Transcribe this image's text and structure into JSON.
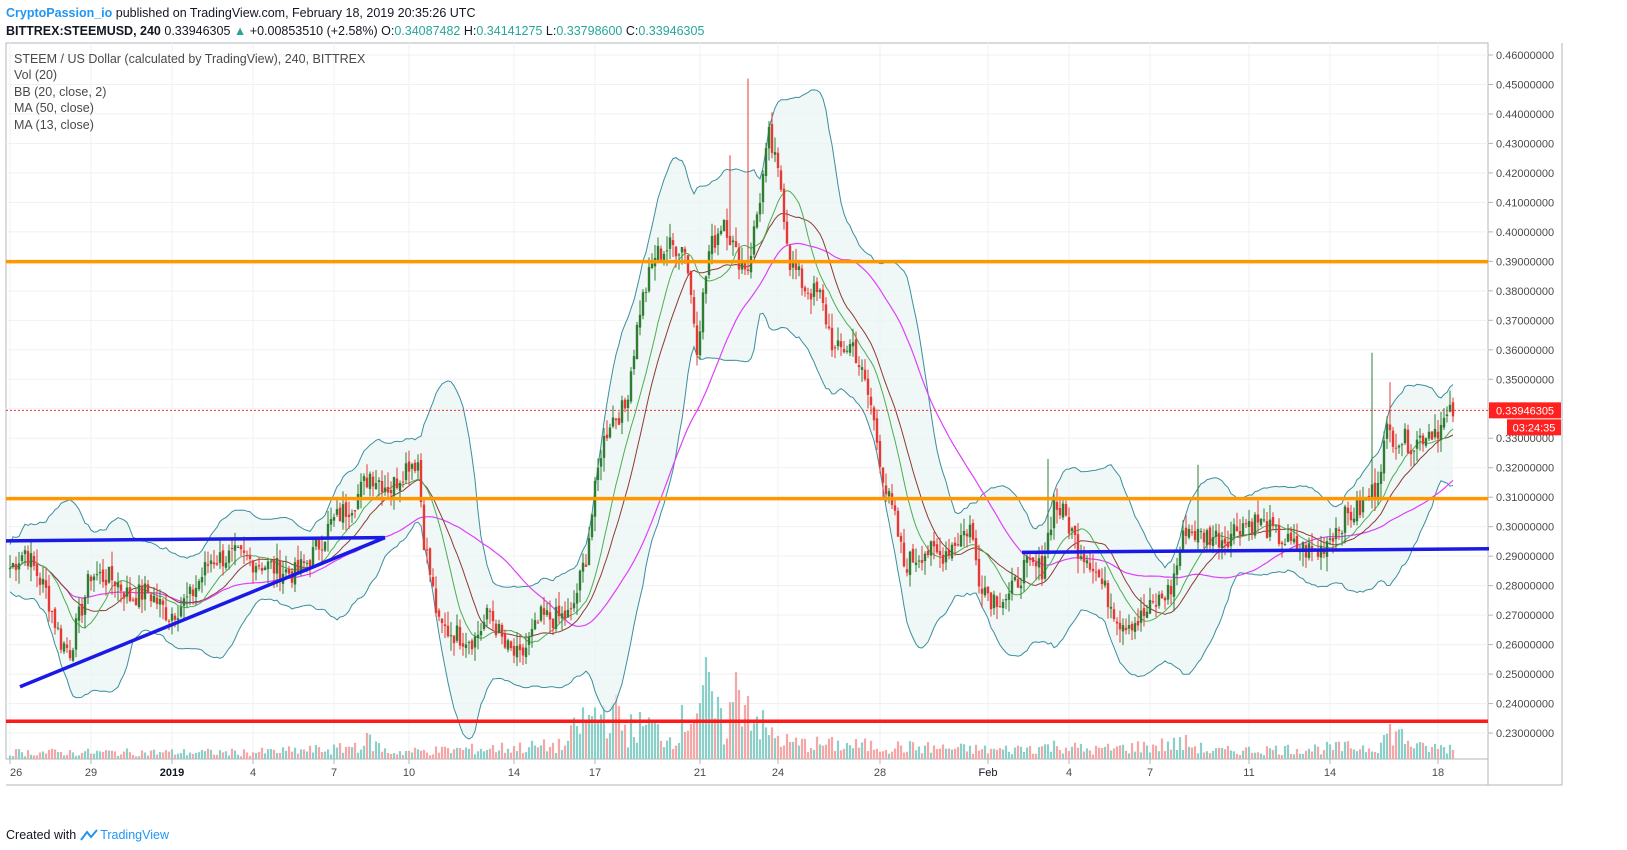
{
  "header": {
    "author": "CryptoPassion_io",
    "published": " published on TradingView.com, February 18, 2019 20:35:26 UTC",
    "symbol": "BITTREX:STEEMUSD, 240",
    "last": "0.33946305",
    "change_arrow": "▲",
    "change": "+0.00853510 (+2.58%)",
    "open_label": "O:",
    "open": "0.34087482",
    "high_label": "H:",
    "high": "0.34141275",
    "low_label": "L:",
    "low": "0.33798600",
    "close_label": "C:",
    "close": "0.33946305"
  },
  "legend": [
    "STEEM / US Dollar (calculated by TradingView), 240, BITTREX",
    "Vol (20)",
    "BB (20, close, 2)",
    "MA (50, close)",
    "MA (13, close)"
  ],
  "footer": {
    "created_with": "Created with",
    "brand": "TradingView"
  },
  "colors": {
    "up": "#26a69a",
    "up_candle": "#2e7d32",
    "down_candle": "#e53935",
    "bb": "#3a8f9c",
    "ma13": "#4caf50",
    "ma20": "#8d3b33",
    "ma50": "#e040fb",
    "orange": "#ff9800",
    "blue": "#1a1ae6",
    "red": "#ff1a1a"
  },
  "chart_data": {
    "type": "candlestick",
    "symbol": "BITTREX:STEEMUSD",
    "interval": "240",
    "y_ticks": [
      "0.46000000",
      "0.45000000",
      "0.44000000",
      "0.43000000",
      "0.42000000",
      "0.41000000",
      "0.40000000",
      "0.39000000",
      "0.38000000",
      "0.37000000",
      "0.36000000",
      "0.35000000",
      "0.34000000",
      "0.33000000",
      "0.32000000",
      "0.31000000",
      "0.30000000",
      "0.29000000",
      "0.28000000",
      "0.27000000",
      "0.26000000",
      "0.25000000",
      "0.24000000",
      "0.23000000"
    ],
    "ylim": [
      0.2215,
      0.4646
    ],
    "x_ticks": [
      "26",
      "29",
      "2019",
      "4",
      "7",
      "10",
      "14",
      "17",
      "21",
      "24",
      "28",
      "Feb",
      "4",
      "7",
      "11",
      "14",
      "18"
    ],
    "last_price_label": "0.33946305",
    "countdown_label": "03:24:35",
    "last_price": 0.33946305,
    "horizontal_lines": [
      {
        "name": "resistance",
        "value": 0.3899,
        "color": "#ff9800"
      },
      {
        "name": "support",
        "value": 0.3095,
        "color": "#ff9800"
      },
      {
        "name": "low-support",
        "value": 0.234,
        "color": "#ff1a1a"
      }
    ],
    "trendlines": [
      {
        "name": "triangle-upper",
        "from": [
          0,
          0.2952
        ],
        "to": [
          125,
          0.2963
        ]
      },
      {
        "name": "triangle-lower",
        "from": [
          2,
          0.2457
        ],
        "to": [
          125,
          0.2963
        ]
      },
      {
        "name": "range-line",
        "from": [
          336,
          0.2913
        ],
        "to": [
          493,
          0.2925
        ]
      }
    ],
    "price_path_knots": [
      [
        0,
        0.286
      ],
      [
        5,
        0.292
      ],
      [
        12,
        0.278
      ],
      [
        17,
        0.261
      ],
      [
        20,
        0.258
      ],
      [
        27,
        0.284
      ],
      [
        35,
        0.282
      ],
      [
        40,
        0.276
      ],
      [
        46,
        0.278
      ],
      [
        53,
        0.27
      ],
      [
        60,
        0.276
      ],
      [
        67,
        0.289
      ],
      [
        75,
        0.29
      ],
      [
        82,
        0.288
      ],
      [
        88,
        0.286
      ],
      [
        95,
        0.284
      ],
      [
        100,
        0.289
      ],
      [
        107,
        0.301
      ],
      [
        115,
        0.309
      ],
      [
        120,
        0.318
      ],
      [
        127,
        0.313
      ],
      [
        133,
        0.322
      ],
      [
        136,
        0.322
      ],
      [
        138,
        0.296
      ],
      [
        143,
        0.266
      ],
      [
        150,
        0.263
      ],
      [
        155,
        0.262
      ],
      [
        160,
        0.271
      ],
      [
        165,
        0.259
      ],
      [
        170,
        0.255
      ],
      [
        177,
        0.269
      ],
      [
        182,
        0.269
      ],
      [
        187,
        0.27
      ],
      [
        192,
        0.29
      ],
      [
        197,
        0.326
      ],
      [
        200,
        0.336
      ],
      [
        205,
        0.34
      ],
      [
        210,
        0.374
      ],
      [
        215,
        0.392
      ],
      [
        220,
        0.395
      ],
      [
        225,
        0.395
      ],
      [
        229,
        0.362
      ],
      [
        233,
        0.393
      ],
      [
        238,
        0.405
      ],
      [
        242,
        0.392
      ],
      [
        246,
        0.388
      ],
      [
        250,
        0.412
      ],
      [
        253,
        0.432
      ],
      [
        257,
        0.415
      ],
      [
        260,
        0.39
      ],
      [
        265,
        0.381
      ],
      [
        270,
        0.378
      ],
      [
        275,
        0.359
      ],
      [
        281,
        0.362
      ],
      [
        287,
        0.341
      ],
      [
        292,
        0.312
      ],
      [
        295,
        0.302
      ],
      [
        298,
        0.287
      ],
      [
        305,
        0.292
      ],
      [
        310,
        0.29
      ],
      [
        315,
        0.295
      ],
      [
        320,
        0.3
      ],
      [
        323,
        0.283
      ],
      [
        327,
        0.276
      ],
      [
        333,
        0.276
      ],
      [
        338,
        0.286
      ],
      [
        344,
        0.286
      ],
      [
        348,
        0.308
      ],
      [
        352,
        0.303
      ],
      [
        356,
        0.293
      ],
      [
        360,
        0.289
      ],
      [
        366,
        0.276
      ],
      [
        370,
        0.268
      ],
      [
        376,
        0.268
      ],
      [
        382,
        0.274
      ],
      [
        387,
        0.279
      ],
      [
        392,
        0.3
      ],
      [
        396,
        0.297
      ],
      [
        400,
        0.297
      ],
      [
        405,
        0.296
      ],
      [
        410,
        0.301
      ],
      [
        416,
        0.302
      ],
      [
        422,
        0.297
      ],
      [
        428,
        0.293
      ],
      [
        433,
        0.292
      ],
      [
        436,
        0.291
      ],
      [
        440,
        0.297
      ],
      [
        445,
        0.303
      ],
      [
        450,
        0.306
      ],
      [
        455,
        0.313
      ],
      [
        459,
        0.332
      ],
      [
        463,
        0.33
      ],
      [
        468,
        0.328
      ],
      [
        472,
        0.332
      ],
      [
        477,
        0.334
      ],
      [
        481,
        0.339
      ]
    ],
    "volume_profile": [
      [
        0,
        0.3
      ],
      [
        80,
        0.3
      ],
      [
        110,
        0.45
      ],
      [
        120,
        0.8
      ],
      [
        126,
        0.3
      ],
      [
        185,
        0.6
      ],
      [
        190,
        1.6
      ],
      [
        200,
        2.2
      ],
      [
        206,
        1.3
      ],
      [
        213,
        1.5
      ],
      [
        220,
        0.9
      ],
      [
        232,
        3.0
      ],
      [
        238,
        1.2
      ],
      [
        243,
        3.3
      ],
      [
        252,
        1.2
      ],
      [
        260,
        0.7
      ],
      [
        330,
        0.4
      ],
      [
        350,
        0.6
      ],
      [
        360,
        0.4
      ],
      [
        392,
        0.7
      ],
      [
        400,
        0.35
      ],
      [
        455,
        0.55
      ],
      [
        461,
        1.3
      ],
      [
        465,
        0.9
      ],
      [
        470,
        0.5
      ],
      [
        481,
        0.5
      ]
    ]
  }
}
